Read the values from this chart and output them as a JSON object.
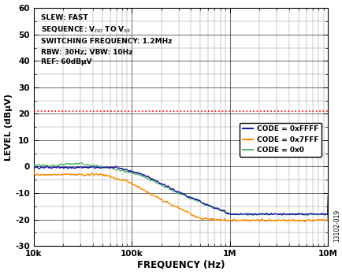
{
  "title": "",
  "xlabel": "FREQUENCY (Hz)",
  "ylabel": "LEVEL (dBµV)",
  "xlim_log": [
    4,
    7
  ],
  "ylim": [
    -30,
    60
  ],
  "yticks": [
    -30,
    -20,
    -10,
    0,
    10,
    20,
    30,
    40,
    50,
    60
  ],
  "xtick_labels": [
    "10k",
    "100k",
    "1M",
    "10M"
  ],
  "red_line_y": 21,
  "legend_entries": [
    {
      "label": "CODE = 0xFFFF",
      "color": "#1a1aaa"
    },
    {
      "label": "CODE = 0x7FFF",
      "color": "#FF8C00"
    },
    {
      "label": "CODE = 0x0",
      "color": "#5BBD72"
    }
  ],
  "watermark": "13102-019",
  "bg_color": "#FFFFFF"
}
